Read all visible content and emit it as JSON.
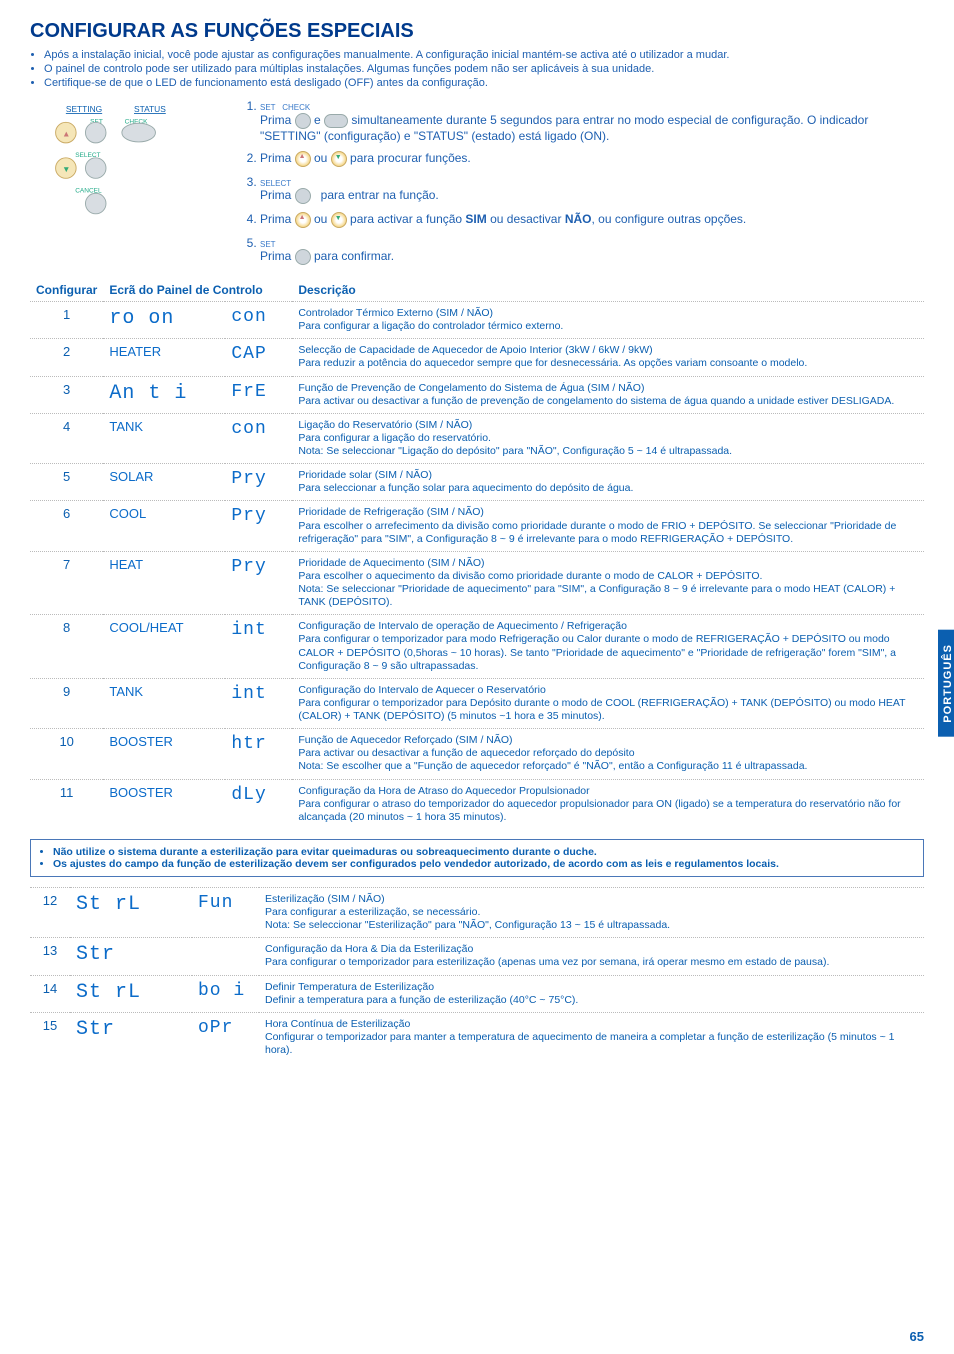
{
  "title": "CONFIGURAR AS FUNÇÕES ESPECIAIS",
  "bullets": [
    "Após a instalação inicial, você pode ajustar as configurações manualmente. A configuração inicial mantém-se activa até o utilizador a mudar.",
    "O painel de controlo pode ser utilizado para múltiplas instalações. Algumas funções podem não ser aplicáveis à sua unidade.",
    "Certifique-se de que o LED de funcionamento está desligado (OFF) antes da configuração."
  ],
  "panel": {
    "setting": "SETTING",
    "status": "STATUS",
    "set": "SET",
    "check": "CHECK",
    "select": "SELECT",
    "cancel": "CANCEL"
  },
  "steps": {
    "s1a": "Prima ",
    "s1b": " e ",
    "s1c": " simultaneamente durante 5 segundos para entrar no modo especial de configuração. O indicador \"SETTING\" (configuração) e \"STATUS\" (estado) está ligado (ON).",
    "s1_set": "SET",
    "s1_check": "CHECK",
    "s2a": "Prima ",
    "s2b": " ou ",
    "s2c": " para procurar funções.",
    "s3a": "Prima ",
    "s3b": " para entrar na função.",
    "s3_select": "SELECT",
    "s4a": "Prima ",
    "s4b": " ou ",
    "s4c": " para activar a função ",
    "s4_sim": "SIM",
    "s4d": " ou desactivar ",
    "s4_nao": "NÃO",
    "s4e": ", ou configure outras opções.",
    "s5a": "Prima ",
    "s5b": " para confirmar.",
    "s5_set": "SET"
  },
  "headers": {
    "config": "Configurar",
    "screen": "Ecrã do Painel de Controlo",
    "desc": "Descrição"
  },
  "rows": [
    {
      "n": "1",
      "l1_seg": "ro on",
      "l1_plain": "",
      "l2": "con",
      "title": "Controlador Térmico Externo (SIM / NÃO)",
      "body": "Para configurar a ligação do controlador térmico externo."
    },
    {
      "n": "2",
      "l1_seg": "",
      "l1_plain": "HEATER",
      "l2": "CAP",
      "title": "Selecção de Capacidade de Aquecedor de Apoio Interior (3kW / 6kW / 9kW)",
      "body": "Para reduzir a potência do aquecedor sempre que for desnecessária. As opções variam consoante o modelo."
    },
    {
      "n": "3",
      "l1_seg": "An t i",
      "l1_plain": "",
      "l2": "FrE",
      "title": "Função de Prevenção de Congelamento do Sistema de Água (SIM / NÃO)",
      "body": "Para activar ou desactivar a função de prevenção de congelamento do sistema de água quando a unidade estiver DESLIGADA."
    },
    {
      "n": "4",
      "l1_seg": "",
      "l1_plain": "TANK",
      "l2": "con",
      "title": "Ligação do Reservatório (SIM / NÃO)",
      "body": "Para configurar a ligação do reservatório.\nNota: Se seleccionar \"Ligação do depósito\" para \"NÃO\", Configuração 5 ~ 14 é ultrapassada."
    },
    {
      "n": "5",
      "l1_seg": "",
      "l1_plain": "SOLAR",
      "l2": "Pry",
      "title": "Prioridade solar (SIM / NÃO)",
      "body": "Para seleccionar a função solar para aquecimento do depósito de água."
    },
    {
      "n": "6",
      "l1_seg": "",
      "l1_plain": "COOL",
      "l2": "Pry",
      "title": "Prioridade de Refrigeração (SIM / NÃO)",
      "body": "Para escolher o arrefecimento da divisão como prioridade durante o modo de FRIO + DEPÓSITO. Se seleccionar \"Prioridade de refrigeração\" para \"SIM\", a Configuração 8 ~ 9 é irrelevante para o modo REFRIGERAÇÃO + DEPÓSITO."
    },
    {
      "n": "7",
      "l1_seg": "",
      "l1_plain": "HEAT",
      "l2": "Pry",
      "title": "Prioridade de Aquecimento (SIM / NÃO)",
      "body": "Para escolher o aquecimento da divisão como prioridade durante o modo de CALOR + DEPÓSITO.\nNota: Se seleccionar \"Prioridade de aquecimento\" para \"SIM\", a Configuração 8 ~ 9 é irrelevante para o modo HEAT (CALOR) + TANK (DEPÓSITO)."
    },
    {
      "n": "8",
      "l1_seg": "",
      "l1_plain": "COOL/HEAT",
      "l2": "int",
      "title": "Configuração de Intervalo de operação de Aquecimento / Refrigeração",
      "body": "Para configurar o temporizador para modo Refrigeração ou Calor durante o modo de REFRIGERAÇÃO + DEPÓSITO ou modo CALOR + DEPÓSITO (0,5horas ~ 10 horas). Se tanto \"Prioridade de aquecimento\" e \"Prioridade de refrigeração\" forem \"SIM\", a Configuração 8 ~ 9 são ultrapassadas."
    },
    {
      "n": "9",
      "l1_seg": "",
      "l1_plain": "TANK",
      "l2": "int",
      "title": "Configuração do Intervalo de Aquecer o Reservatório",
      "body": "Para configurar o temporizador para Depósito durante o modo de COOL (REFRIGERAÇÃO) + TANK (DEPÓSITO) ou modo HEAT (CALOR) + TANK (DEPÓSITO) (5 minutos ~1 hora e 35 minutos)."
    },
    {
      "n": "10",
      "l1_seg": "",
      "l1_plain": "BOOSTER",
      "l2": "htr",
      "title": "Função de Aquecedor Reforçado (SIM / NÃO)",
      "body": "Para activar ou desactivar a função de aquecedor reforçado do depósito\nNota: Se escolher que a \"Função de aquecedor reforçado\" é \"NÃO\", então a Configuração 11 é ultrapassada."
    },
    {
      "n": "11",
      "l1_seg": "",
      "l1_plain": "BOOSTER",
      "l2": "dLy",
      "title": "Configuração da Hora de Atraso do Aquecedor Propulsionador",
      "body": "Para configurar o atraso do temporizador do aquecedor propulsionador para ON (ligado) se a temperatura do reservatório não for alcançada (20 minutos ~ 1 hora 35 minutos)."
    }
  ],
  "warning": [
    "Não utilize o sistema durante a esterilização para evitar queimaduras ou sobreaquecimento durante o duche.",
    "Os ajustes do campo da função de esterilização devem ser configurados pelo vendedor autorizado, de acordo com as leis e regulamentos locais."
  ],
  "rows2": [
    {
      "n": "12",
      "l1": "St rL",
      "l2": "Fun",
      "title": "Esterilização (SIM / NÃO)",
      "body": "Para configurar a esterilização, se necessário.\nNota: Se seleccionar \"Esterilização\" para \"NÃO\", Configuração 13 ~ 15 é ultrapassada."
    },
    {
      "n": "13",
      "l1": "Str",
      "l2": "",
      "title": "Configuração da Hora & Dia da Esterilização",
      "body": "Para configurar o temporizador para esterilização (apenas uma vez por semana, irá operar mesmo em estado de pausa)."
    },
    {
      "n": "14",
      "l1": "St rL",
      "l2": "bo i",
      "title": "Definir Temperatura de Esterilização",
      "body": "Definir a temperatura para a função de esterilização (40°C ~ 75°C)."
    },
    {
      "n": "15",
      "l1": "Str",
      "l2": "oPr",
      "title": "Hora Contínua de Esterilização",
      "body": "Configurar o temporizador para manter a temperatura de aquecimento de maneira a completar a função de esterilização (5 minutos ~ 1 hora)."
    }
  ],
  "sideTab": "PORTUGUÊS",
  "pageNum": "65"
}
